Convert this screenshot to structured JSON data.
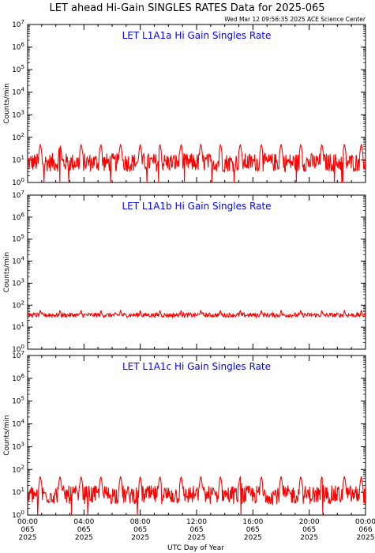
{
  "header": {
    "title": "LET ahead Hi-Gain SINGLES RATES Data for 2025-065",
    "timestamp": "Wed Mar 12 09:56:35 2025 ACE Science Center"
  },
  "colors": {
    "series": "#ff0000",
    "panel_title": "#0000ff",
    "axis": "#000000",
    "background": "#ffffff"
  },
  "chart_data": [
    {
      "type": "line",
      "title": "LET L1A1a Hi Gain Singles Rate",
      "ylabel": "Counts/min",
      "yscale": "log",
      "ylim": [
        1,
        10000000
      ],
      "y_ticks": [
        "10^0",
        "10^1",
        "10^2",
        "10^3",
        "10^4",
        "10^5",
        "10^6",
        "10^7"
      ],
      "baseline": 8,
      "noise_range": [
        3,
        20
      ],
      "spike_peak": 50,
      "spike_times_hours": [
        0.9,
        2.3,
        3.8,
        5.2,
        6.6,
        8.0,
        9.4,
        10.9,
        12.3,
        13.7,
        15.1,
        16.6,
        18.0,
        19.4,
        20.9,
        22.5,
        23.7
      ],
      "dropouts_below_axis": true
    },
    {
      "type": "line",
      "title": "LET L1A1b Hi Gain Singles Rate",
      "ylabel": "Counts/min",
      "yscale": "log",
      "ylim": [
        1,
        10000000
      ],
      "y_ticks": [
        "10^0",
        "10^1",
        "10^2",
        "10^3",
        "10^4",
        "10^5",
        "10^6",
        "10^7"
      ],
      "baseline": 35,
      "noise_range": [
        28,
        45
      ],
      "spike_peak": 60,
      "spike_times_hours": [
        0.9,
        2.3,
        3.8,
        5.2,
        6.6,
        8.0,
        9.4,
        10.9,
        12.3,
        13.7,
        15.1,
        16.6,
        18.0,
        19.4,
        20.9,
        22.5,
        23.7
      ],
      "dropouts_below_axis": false
    },
    {
      "type": "line",
      "title": "LET L1A1c Hi Gain Singles Rate",
      "ylabel": "Counts/min",
      "yscale": "log",
      "ylim": [
        1,
        10000000
      ],
      "y_ticks": [
        "10^0",
        "10^1",
        "10^2",
        "10^3",
        "10^4",
        "10^5",
        "10^6",
        "10^7"
      ],
      "baseline": 8,
      "noise_range": [
        3,
        20
      ],
      "spike_peak": 50,
      "spike_times_hours": [
        0.9,
        2.3,
        3.8,
        5.2,
        6.6,
        8.0,
        9.4,
        10.9,
        12.3,
        13.7,
        15.1,
        16.6,
        18.0,
        19.4,
        20.9,
        22.5,
        23.7
      ],
      "dropouts_below_axis": true
    }
  ],
  "x_axis": {
    "label": "UTC Day of Year",
    "range_hours": [
      0,
      24
    ],
    "ticks": [
      {
        "hour": 0,
        "time": "00:00",
        "doy": "065",
        "year": "2025"
      },
      {
        "hour": 4,
        "time": "04:00",
        "doy": "065",
        "year": "2025"
      },
      {
        "hour": 8,
        "time": "08:00",
        "doy": "065",
        "year": "2025"
      },
      {
        "hour": 12,
        "time": "12:00",
        "doy": "065",
        "year": "2025"
      },
      {
        "hour": 16,
        "time": "16:00",
        "doy": "065",
        "year": "2025"
      },
      {
        "hour": 20,
        "time": "20:00",
        "doy": "065",
        "year": "2025"
      },
      {
        "hour": 24,
        "time": "00:00",
        "doy": "066",
        "year": "2025"
      }
    ]
  }
}
